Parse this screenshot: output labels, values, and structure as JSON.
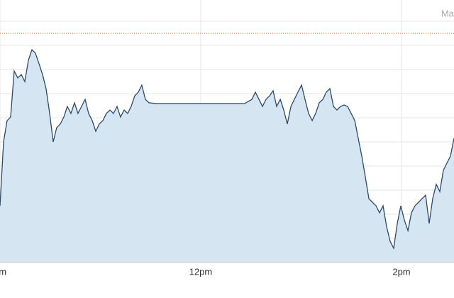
{
  "chart_data": {
    "type": "area",
    "title": "Ma",
    "x": [
      10,
      10.035,
      10.071,
      10.106,
      10.141,
      10.177,
      10.212,
      10.247,
      10.283,
      10.318,
      10.353,
      10.389,
      10.424,
      10.459,
      10.495,
      10.53,
      10.565,
      10.601,
      10.636,
      10.671,
      10.707,
      10.742,
      10.777,
      10.813,
      10.848,
      10.883,
      10.919,
      10.954,
      10.989,
      11.025,
      11.06,
      11.095,
      11.131,
      11.166,
      11.201,
      11.237,
      11.272,
      11.307,
      11.343,
      11.378,
      11.413,
      11.449,
      11.484,
      11.555,
      11.696,
      11.837,
      12,
      12.12,
      12.261,
      12.438,
      12.509,
      12.544,
      12.58,
      12.615,
      12.65,
      12.686,
      12.721,
      12.756,
      12.792,
      12.827,
      12.862,
      12.898,
      12.933,
      12.968,
      13.004,
      13.039,
      13.074,
      13.11,
      13.145,
      13.18,
      13.216,
      13.251,
      13.286,
      13.322,
      13.357,
      13.392,
      13.428,
      13.463,
      13.498,
      13.534,
      13.569,
      13.604,
      13.64,
      13.675,
      13.71,
      13.746,
      13.781,
      13.816,
      13.852,
      13.887,
      13.922,
      13.958,
      13.993,
      14.028,
      14.064,
      14.099,
      14.134,
      14.17,
      14.205,
      14.24,
      14.276,
      14.311,
      14.346,
      14.382,
      14.417,
      14.452,
      14.488,
      14.523
    ],
    "series": [
      {
        "color": "#2c4a68",
        "fill": "#d5e5f1",
        "values": [
          2.35,
          5.0,
          5.88,
          6.03,
          7.94,
          7.65,
          7.79,
          7.5,
          8.38,
          8.82,
          8.68,
          8.24,
          7.79,
          7.21,
          6.18,
          5.0,
          5.59,
          5.74,
          6.03,
          6.47,
          6.18,
          6.62,
          6.18,
          6.47,
          6.76,
          6.18,
          5.88,
          5.44,
          5.74,
          5.88,
          6.18,
          6.32,
          6.18,
          6.47,
          6.03,
          6.32,
          6.18,
          6.47,
          6.91,
          7.06,
          7.35,
          6.76,
          6.62,
          6.59,
          6.59,
          6.59,
          6.59,
          6.59,
          6.59,
          6.59,
          6.76,
          7.06,
          6.76,
          6.47,
          6.76,
          6.91,
          7.12,
          6.47,
          6.76,
          6.32,
          5.74,
          6.47,
          6.76,
          7.06,
          7.35,
          6.76,
          6.18,
          5.88,
          6.18,
          6.62,
          6.76,
          7.06,
          7.21,
          6.47,
          6.32,
          6.47,
          6.53,
          6.47,
          6.18,
          5.88,
          5.15,
          4.41,
          3.53,
          2.65,
          2.5,
          2.35,
          2.06,
          2.35,
          1.47,
          0.88,
          0.59,
          1.62,
          2.35,
          1.76,
          1.32,
          2.06,
          2.35,
          2.5,
          2.65,
          2.79,
          1.62,
          2.65,
          3.24,
          2.94,
          3.82,
          4.12,
          4.41,
          5.15
        ]
      }
    ],
    "reference_line": {
      "value": 9.5,
      "color": "#e07a30"
    },
    "xlim": [
      10,
      14.523
    ],
    "xticks": [
      {
        "value": 10,
        "label": "am"
      },
      {
        "value": 12,
        "label": "12pm"
      },
      {
        "value": 14,
        "label": "2pm"
      }
    ],
    "ylim": [
      0,
      10.88
    ],
    "yticks": [
      1,
      2,
      3,
      4,
      5,
      6,
      7,
      8,
      9,
      10
    ],
    "grid": true
  }
}
